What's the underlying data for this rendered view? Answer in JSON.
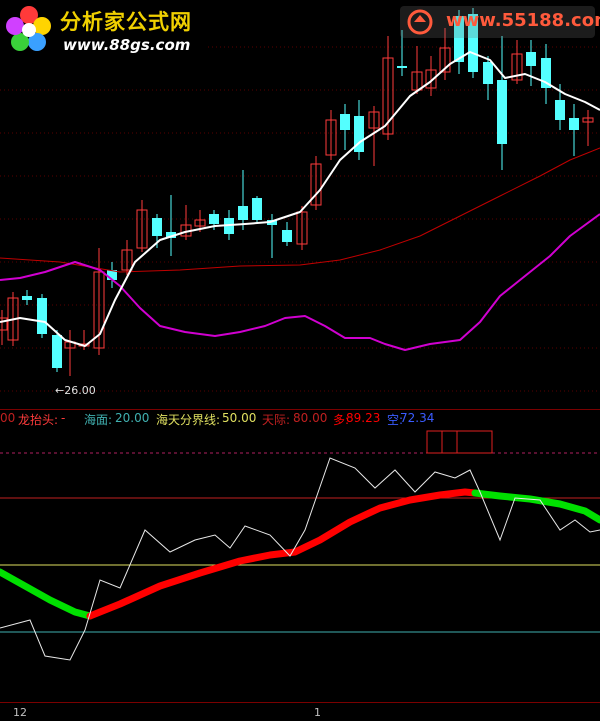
{
  "watermark": {
    "logo_title": "分析家公式网",
    "logo_url": "www.88gs.com",
    "site_url": "www.55188.com"
  },
  "price_panel": {
    "low_marker_label": "←26.00"
  },
  "indicator_legend": {
    "prefix": "00",
    "name_label": "龙抬头:",
    "name_value": "-",
    "sea_label": "海面:",
    "sea_value": "20.00",
    "divide_label": "海天分界线:",
    "divide_value": "50.00",
    "sky_label": "天际:",
    "sky_value": "80.00",
    "long_label": "多:",
    "long_value": "89.23",
    "short_label": "空:",
    "short_value": "72.34"
  },
  "time_axis": {
    "label_1": "12",
    "label_2": "1"
  },
  "colors": {
    "bull_candle": "#ff3b3b",
    "bear_candle": "#54ffff",
    "ma_short": "#ffffff",
    "ma_mid": "#d000d0",
    "ma_long": "#c00000",
    "sea": "#40b0b0",
    "divide": "#e0e060",
    "sky": "#c02020",
    "long": "#ff0000",
    "short": "#00e000"
  }
}
